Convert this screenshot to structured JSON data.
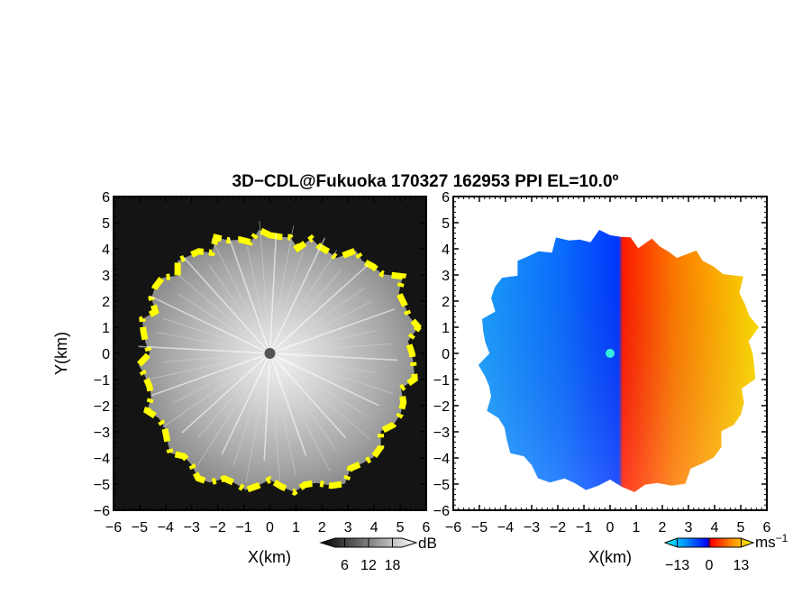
{
  "chart_data": {
    "title": "3D−CDL@Fukuoka 170327 162953 PPI EL=10.0º",
    "type": "heatmap",
    "panels": [
      {
        "id": "reflectivity",
        "xlabel": "X(km)",
        "ylabel": "Y(km)",
        "xlim": [
          -6,
          6
        ],
        "ylim": [
          -6,
          6
        ],
        "xticks": [
          -6,
          -5,
          -4,
          -3,
          -2,
          -1,
          0,
          1,
          2,
          3,
          4,
          5,
          6
        ],
        "yticks": [
          -6,
          -5,
          -4,
          -3,
          -2,
          -1,
          0,
          1,
          2,
          3,
          4,
          5,
          6
        ],
        "colorbar": {
          "unit": "dB",
          "ticks": [
            6,
            12,
            18
          ],
          "range": [
            0,
            24
          ],
          "colormap": "grayscale",
          "highlight_color": "#ffff00"
        },
        "echo_radius_km": [
          {
            "azimuth_deg": 0,
            "r": 4.4
          },
          {
            "azimuth_deg": 30,
            "r": 4.5
          },
          {
            "azimuth_deg": 60,
            "r": 5.6
          },
          {
            "azimuth_deg": 90,
            "r": 5.5
          },
          {
            "azimuth_deg": 120,
            "r": 5.4
          },
          {
            "azimuth_deg": 150,
            "r": 5.6
          },
          {
            "azimuth_deg": 180,
            "r": 5.0
          },
          {
            "azimuth_deg": 210,
            "r": 5.4
          },
          {
            "azimuth_deg": 240,
            "r": 5.0
          },
          {
            "azimuth_deg": 270,
            "r": 4.8
          },
          {
            "azimuth_deg": 300,
            "r": 5.0
          },
          {
            "azimuth_deg": 330,
            "r": 4.7
          }
        ]
      },
      {
        "id": "doppler_velocity",
        "xlabel": "X(km)",
        "xlim": [
          -6,
          6
        ],
        "ylim": [
          -6,
          6
        ],
        "xticks": [
          -6,
          -5,
          -4,
          -3,
          -2,
          -1,
          0,
          1,
          2,
          3,
          4,
          5,
          6
        ],
        "yticks": [
          -6,
          -5,
          -4,
          -3,
          -2,
          -1,
          0,
          1,
          2,
          3,
          4,
          5,
          6
        ],
        "colorbar": {
          "unit": "ms",
          "unit_exponent": "−1",
          "ticks": [
            -13,
            0,
            13
          ],
          "tick_labels": [
            "−13",
            "0",
            "13"
          ],
          "range": [
            -18,
            18
          ],
          "colormap": [
            "#00ffff",
            "#0088ff",
            "#0000ff",
            "#ff0000",
            "#ff8800",
            "#ffff00"
          ]
        },
        "velocity_pattern": "receding east of the zero isodop (red-yellow), approaching west (blue-cyan)"
      }
    ]
  }
}
